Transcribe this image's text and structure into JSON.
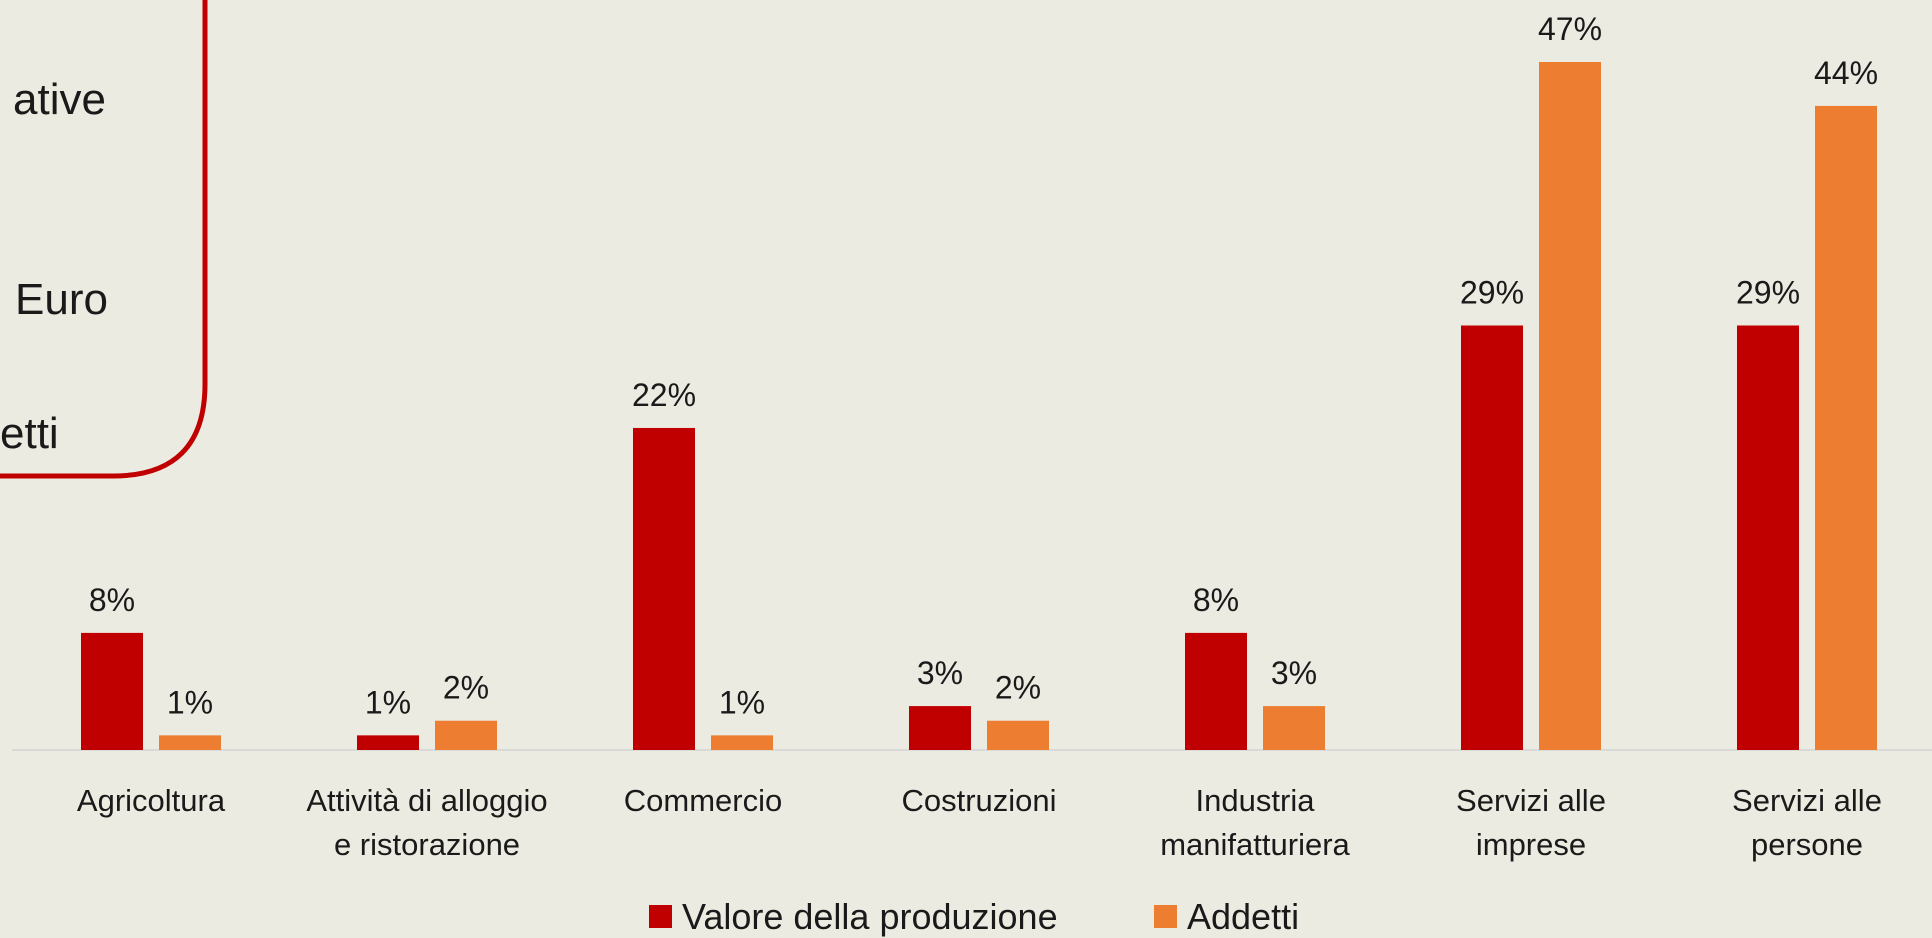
{
  "side_box": {
    "lines": [
      "ative",
      "Euro",
      "etti"
    ]
  },
  "chart_data": {
    "type": "bar",
    "categories": [
      [
        "Agricoltura"
      ],
      [
        "Attività di alloggio",
        "e ristorazione"
      ],
      [
        "Commercio"
      ],
      [
        "Costruzioni"
      ],
      [
        "Industria",
        "manifatturiera"
      ],
      [
        "Servizi alle",
        "imprese"
      ],
      [
        "Servizi alle",
        "persone"
      ]
    ],
    "series": [
      {
        "name": "Valore della produzione",
        "color": "#c00000",
        "values": [
          8,
          1,
          22,
          3,
          8,
          29,
          29
        ],
        "value_labels": [
          "8%",
          "1%",
          "22%",
          "3%",
          "8%",
          "29%",
          "29%"
        ]
      },
      {
        "name": "Addetti",
        "color": "#ed7d31",
        "values": [
          1,
          2,
          1,
          2,
          3,
          47,
          44
        ],
        "value_labels": [
          "1%",
          "2%",
          "1%",
          "2%",
          "3%",
          "47%",
          "44%"
        ]
      }
    ]
  }
}
